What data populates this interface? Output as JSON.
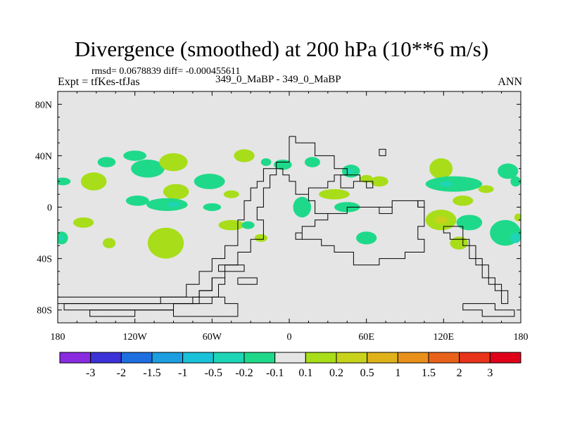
{
  "chart_data": {
    "type": "heatmap",
    "title": "Divergence (smoothed) at 200 hPa (10**6 m/s)",
    "stats_text": "rmsd= 0.0678839 diff= -0.000455611",
    "experiment_text": "Expt = tfKes-tfJas",
    "runs_text": "349_0_MaBP - 349_0_MaBP",
    "season": "ANN",
    "x_range": [
      -180,
      180
    ],
    "y_range": [
      -90,
      90
    ],
    "x_ticks": [
      {
        "value": -180,
        "label": "180"
      },
      {
        "value": -120,
        "label": "120W"
      },
      {
        "value": -60,
        "label": "60W"
      },
      {
        "value": 0,
        "label": "0"
      },
      {
        "value": 60,
        "label": "60E"
      },
      {
        "value": 120,
        "label": "120E"
      },
      {
        "value": 180,
        "label": "180"
      }
    ],
    "y_ticks": [
      {
        "value": 80,
        "label": "80N"
      },
      {
        "value": 40,
        "label": "40N"
      },
      {
        "value": 0,
        "label": "0"
      },
      {
        "value": -40,
        "label": "40S"
      },
      {
        "value": -80,
        "label": "80S"
      }
    ],
    "background_color": "#e5e5e5",
    "colorbar": {
      "levels": [
        "-3",
        "-2",
        "-1.5",
        "-1",
        "-0.5",
        "-0.2",
        "-0.1",
        "0.1",
        "0.2",
        "0.5",
        "1",
        "1.5",
        "2",
        "3"
      ],
      "colors": [
        "#8a2be2",
        "#3b32d8",
        "#1e6fe0",
        "#1c9ee0",
        "#19c2d8",
        "#1ed5b5",
        "#1fd98a",
        "#e5e5e5",
        "#a8dd1a",
        "#c8d21a",
        "#e0b21a",
        "#e8901a",
        "#e8621a",
        "#e8341a",
        "#e0001a"
      ]
    },
    "anomaly_regions": [
      {
        "lon": -176,
        "lat": 20,
        "rx": 6,
        "ry": 3,
        "color": "#1fd98a"
      },
      {
        "lon": -177,
        "lat": -24,
        "rx": 5,
        "ry": 5,
        "color": "#1fd98a"
      },
      {
        "lon": -177,
        "lat": -24,
        "rx": 2,
        "ry": 2,
        "color": "#1ed5b5"
      },
      {
        "lon": -152,
        "lat": 20,
        "rx": 10,
        "ry": 7,
        "color": "#a8dd1a"
      },
      {
        "lon": -142,
        "lat": 35,
        "rx": 7,
        "ry": 4,
        "color": "#1fd98a"
      },
      {
        "lon": -160,
        "lat": -12,
        "rx": 8,
        "ry": 4,
        "color": "#a8dd1a"
      },
      {
        "lon": -120,
        "lat": 40,
        "rx": 9,
        "ry": 4,
        "color": "#1fd98a"
      },
      {
        "lon": -110,
        "lat": 30,
        "rx": 13,
        "ry": 7,
        "color": "#1fd98a"
      },
      {
        "lon": -90,
        "lat": 35,
        "rx": 11,
        "ry": 7,
        "color": "#a8dd1a"
      },
      {
        "lon": -118,
        "lat": 5,
        "rx": 9,
        "ry": 4,
        "color": "#1fd98a"
      },
      {
        "lon": -88,
        "lat": 12,
        "rx": 10,
        "ry": 6,
        "color": "#a8dd1a"
      },
      {
        "lon": -95,
        "lat": 2,
        "rx": 16,
        "ry": 5,
        "color": "#1fd98a"
      },
      {
        "lon": -90,
        "lat": 2,
        "rx": 5,
        "ry": 2,
        "color": "#1ed5b5"
      },
      {
        "lon": -62,
        "lat": 20,
        "rx": 12,
        "ry": 6,
        "color": "#1fd98a"
      },
      {
        "lon": -60,
        "lat": 0,
        "rx": 7,
        "ry": 3,
        "color": "#1fd98a"
      },
      {
        "lon": -45,
        "lat": 10,
        "rx": 6,
        "ry": 3,
        "color": "#a8dd1a"
      },
      {
        "lon": -35,
        "lat": 40,
        "rx": 8,
        "ry": 5,
        "color": "#a8dd1a"
      },
      {
        "lon": -96,
        "lat": -28,
        "rx": 14,
        "ry": 12,
        "color": "#a8dd1a"
      },
      {
        "lon": -140,
        "lat": -28,
        "rx": 5,
        "ry": 4,
        "color": "#a8dd1a"
      },
      {
        "lon": -45,
        "lat": -14,
        "rx": 10,
        "ry": 4,
        "color": "#a8dd1a"
      },
      {
        "lon": -32,
        "lat": -14,
        "rx": 5,
        "ry": 3,
        "color": "#1fd98a"
      },
      {
        "lon": -22,
        "lat": -24,
        "rx": 5,
        "ry": 3,
        "color": "#a8dd1a"
      },
      {
        "lon": -18,
        "lat": 35,
        "rx": 4,
        "ry": 3,
        "color": "#1fd98a"
      },
      {
        "lon": -5,
        "lat": 33,
        "rx": 7,
        "ry": 4,
        "color": "#1fd98a"
      },
      {
        "lon": 10,
        "lat": 0,
        "rx": 7,
        "ry": 8,
        "color": "#1fd98a"
      },
      {
        "lon": 18,
        "lat": 35,
        "rx": 6,
        "ry": 4,
        "color": "#1fd98a"
      },
      {
        "lon": 35,
        "lat": 10,
        "rx": 12,
        "ry": 4,
        "color": "#a8dd1a"
      },
      {
        "lon": 48,
        "lat": 28,
        "rx": 7,
        "ry": 5,
        "color": "#1fd98a"
      },
      {
        "lon": 47,
        "lat": 28,
        "rx": 3,
        "ry": 2,
        "color": "#1ed5b5"
      },
      {
        "lon": 60,
        "lat": 22,
        "rx": 5,
        "ry": 3,
        "color": "#a8dd1a"
      },
      {
        "lon": 70,
        "lat": 20,
        "rx": 7,
        "ry": 4,
        "color": "#a8dd1a"
      },
      {
        "lon": 45,
        "lat": 0,
        "rx": 10,
        "ry": 4,
        "color": "#1fd98a"
      },
      {
        "lon": 60,
        "lat": -24,
        "rx": 8,
        "ry": 5,
        "color": "#1fd98a"
      },
      {
        "lon": 118,
        "lat": 30,
        "rx": 9,
        "ry": 8,
        "color": "#a8dd1a"
      },
      {
        "lon": 128,
        "lat": 18,
        "rx": 22,
        "ry": 6,
        "color": "#1fd98a"
      },
      {
        "lon": 122,
        "lat": 18,
        "rx": 5,
        "ry": 2,
        "color": "#1ed5b5"
      },
      {
        "lon": 135,
        "lat": 5,
        "rx": 8,
        "ry": 4,
        "color": "#a8dd1a"
      },
      {
        "lon": 118,
        "lat": -10,
        "rx": 12,
        "ry": 8,
        "color": "#a8dd1a"
      },
      {
        "lon": 118,
        "lat": -10,
        "rx": 5,
        "ry": 3,
        "color": "#c8d21a"
      },
      {
        "lon": 140,
        "lat": -12,
        "rx": 10,
        "ry": 6,
        "color": "#1fd98a"
      },
      {
        "lon": 132,
        "lat": -28,
        "rx": 7,
        "ry": 5,
        "color": "#a8dd1a"
      },
      {
        "lon": 168,
        "lat": -20,
        "rx": 12,
        "ry": 10,
        "color": "#1fd98a"
      },
      {
        "lon": 176,
        "lat": -24,
        "rx": 4,
        "ry": 4,
        "color": "#1ed5b5"
      },
      {
        "lon": 170,
        "lat": 28,
        "rx": 8,
        "ry": 6,
        "color": "#1fd98a"
      },
      {
        "lon": 176,
        "lat": 20,
        "rx": 4,
        "ry": 4,
        "color": "#1fd98a"
      },
      {
        "lon": 153,
        "lat": 14,
        "rx": 6,
        "ry": 3,
        "color": "#a8dd1a"
      },
      {
        "lon": 178,
        "lat": -8,
        "rx": 3,
        "ry": 3,
        "color": "#a8dd1a"
      }
    ],
    "land_outlines": [
      [
        [
          0,
          55
        ],
        [
          5,
          55
        ],
        [
          5,
          50
        ],
        [
          20,
          50
        ],
        [
          20,
          40
        ],
        [
          35,
          40
        ],
        [
          35,
          30
        ],
        [
          45,
          30
        ],
        [
          45,
          25
        ],
        [
          35,
          25
        ],
        [
          35,
          20
        ],
        [
          30,
          20
        ],
        [
          30,
          15
        ],
        [
          15,
          15
        ],
        [
          15,
          5
        ],
        [
          20,
          5
        ],
        [
          20,
          -5
        ],
        [
          25,
          -5
        ],
        [
          25,
          -5
        ],
        [
          45,
          -5
        ],
        [
          45,
          0
        ],
        [
          60,
          0
        ],
        [
          60,
          0
        ],
        [
          80,
          0
        ],
        [
          80,
          5
        ],
        [
          100,
          5
        ],
        [
          100,
          0
        ],
        [
          105,
          0
        ],
        [
          105,
          -15
        ],
        [
          100,
          -15
        ],
        [
          100,
          -25
        ],
        [
          105,
          -25
        ],
        [
          105,
          -35
        ],
        [
          90,
          -35
        ],
        [
          90,
          -40
        ],
        [
          70,
          -40
        ],
        [
          70,
          -45
        ],
        [
          50,
          -45
        ],
        [
          50,
          -35
        ],
        [
          35,
          -35
        ],
        [
          35,
          -30
        ],
        [
          25,
          -30
        ],
        [
          25,
          -25
        ],
        [
          10,
          -25
        ],
        [
          10,
          -20
        ],
        [
          5,
          -20
        ],
        [
          5,
          -25
        ],
        [
          10,
          -25
        ],
        [
          10,
          -15
        ],
        [
          20,
          -15
        ],
        [
          20,
          -10
        ],
        [
          30,
          -10
        ],
        [
          30,
          -5
        ],
        [
          20,
          -5
        ],
        [
          20,
          5
        ],
        [
          15,
          5
        ],
        [
          15,
          10
        ],
        [
          5,
          10
        ],
        [
          5,
          20
        ],
        [
          0,
          20
        ],
        [
          0,
          25
        ],
        [
          -5,
          25
        ],
        [
          -5,
          30
        ],
        [
          -10,
          30
        ],
        [
          -10,
          25
        ],
        [
          -15,
          25
        ],
        [
          -15,
          15
        ],
        [
          -20,
          15
        ],
        [
          -20,
          0
        ],
        [
          -25,
          0
        ],
        [
          -25,
          -10
        ],
        [
          -20,
          -10
        ],
        [
          -20,
          -25
        ],
        [
          -30,
          -25
        ],
        [
          -30,
          -35
        ],
        [
          -40,
          -35
        ],
        [
          -40,
          -45
        ],
        [
          -50,
          -45
        ],
        [
          -50,
          -55
        ],
        [
          -60,
          -55
        ],
        [
          -60,
          -65
        ],
        [
          -70,
          -65
        ],
        [
          -70,
          -75
        ],
        [
          -90,
          -75
        ],
        [
          -90,
          -80
        ],
        [
          -175,
          -80
        ],
        [
          -175,
          -75
        ],
        [
          -100,
          -75
        ],
        [
          -100,
          -70
        ],
        [
          -80,
          -70
        ],
        [
          -80,
          -60
        ],
        [
          -70,
          -60
        ],
        [
          -70,
          -50
        ],
        [
          -60,
          -50
        ],
        [
          -60,
          -40
        ],
        [
          -50,
          -40
        ],
        [
          -50,
          -30
        ],
        [
          -40,
          -30
        ],
        [
          -40,
          -10
        ],
        [
          -35,
          -10
        ],
        [
          -35,
          5
        ],
        [
          -30,
          5
        ],
        [
          -30,
          15
        ],
        [
          -25,
          15
        ],
        [
          -25,
          20
        ],
        [
          -20,
          20
        ],
        [
          -20,
          30
        ],
        [
          -10,
          30
        ],
        [
          -10,
          35
        ],
        [
          0,
          35
        ],
        [
          0,
          55
        ]
      ],
      [
        [
          -180,
          -70
        ],
        [
          -180,
          -75
        ],
        [
          -60,
          -75
        ],
        [
          -60,
          -70
        ],
        [
          -55,
          -70
        ],
        [
          -55,
          -60
        ],
        [
          -50,
          -60
        ],
        [
          -50,
          -55
        ],
        [
          -60,
          -55
        ],
        [
          -60,
          -65
        ],
        [
          -70,
          -65
        ],
        [
          -70,
          -70
        ],
        [
          -180,
          -70
        ]
      ],
      [
        [
          -155,
          -80
        ],
        [
          -155,
          -85
        ],
        [
          -120,
          -85
        ],
        [
          -120,
          -80
        ],
        [
          -90,
          -80
        ],
        [
          -90,
          -85
        ],
        [
          -40,
          -85
        ],
        [
          -40,
          -75
        ],
        [
          -50,
          -75
        ],
        [
          -50,
          -70
        ],
        [
          -75,
          -70
        ],
        [
          -75,
          -75
        ],
        [
          -90,
          -75
        ],
        [
          -90,
          -80
        ],
        [
          -155,
          -80
        ]
      ],
      [
        [
          -55,
          -45
        ],
        [
          -55,
          -50
        ],
        [
          -35,
          -50
        ],
        [
          -35,
          -45
        ],
        [
          -55,
          -45
        ]
      ],
      [
        [
          -40,
          -55
        ],
        [
          -40,
          -60
        ],
        [
          -25,
          -60
        ],
        [
          -25,
          -55
        ],
        [
          -40,
          -55
        ]
      ],
      [
        [
          40,
          25
        ],
        [
          40,
          15
        ],
        [
          50,
          15
        ],
        [
          50,
          20
        ],
        [
          60,
          20
        ],
        [
          60,
          15
        ],
        [
          65,
          15
        ],
        [
          65,
          20
        ],
        [
          55,
          20
        ],
        [
          55,
          25
        ],
        [
          40,
          25
        ]
      ],
      [
        [
          70,
          0
        ],
        [
          70,
          -5
        ],
        [
          80,
          -5
        ],
        [
          80,
          0
        ],
        [
          70,
          0
        ]
      ],
      [
        [
          100,
          0
        ],
        [
          100,
          5
        ],
        [
          105,
          5
        ],
        [
          105,
          0
        ],
        [
          100,
          0
        ]
      ],
      [
        [
          120,
          -15
        ],
        [
          120,
          -20
        ],
        [
          125,
          -20
        ],
        [
          125,
          -25
        ],
        [
          140,
          -25
        ],
        [
          140,
          -40
        ],
        [
          150,
          -40
        ],
        [
          150,
          -55
        ],
        [
          160,
          -55
        ],
        [
          160,
          -65
        ],
        [
          170,
          -65
        ],
        [
          170,
          -75
        ],
        [
          165,
          -75
        ],
        [
          165,
          -60
        ],
        [
          155,
          -60
        ],
        [
          155,
          -45
        ],
        [
          145,
          -45
        ],
        [
          145,
          -30
        ],
        [
          135,
          -30
        ],
        [
          135,
          -15
        ],
        [
          120,
          -15
        ]
      ],
      [
        [
          135,
          -75
        ],
        [
          135,
          -80
        ],
        [
          150,
          -80
        ],
        [
          150,
          -85
        ],
        [
          175,
          -85
        ],
        [
          175,
          -80
        ],
        [
          160,
          -80
        ],
        [
          160,
          -75
        ],
        [
          135,
          -75
        ]
      ],
      [
        [
          70,
          40
        ],
        [
          70,
          45
        ],
        [
          75,
          45
        ],
        [
          75,
          40
        ],
        [
          70,
          40
        ]
      ]
    ]
  }
}
